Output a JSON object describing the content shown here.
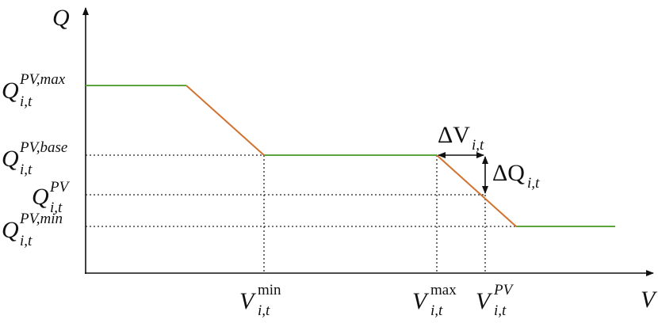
{
  "axes": {
    "y": "Q",
    "x": "V"
  },
  "y_labels": [
    {
      "base": "Q",
      "sup": "PV,max",
      "sub": "i,t"
    },
    {
      "base": "Q",
      "sup": "PV,base",
      "sub": "i,t"
    },
    {
      "base": "Q",
      "sup": "PV",
      "sub": "i,t"
    },
    {
      "base": "Q",
      "sup": "PV,min",
      "sub": "i,t"
    }
  ],
  "x_labels": [
    {
      "base": "V",
      "sup": "min",
      "sub": "i,t"
    },
    {
      "base": "V",
      "sup": "max",
      "sub": "i,t"
    },
    {
      "base": "V",
      "sup": "PV",
      "sub": "i,t"
    }
  ],
  "annotations": [
    {
      "base": "ΔV",
      "sub": "i,t"
    },
    {
      "base": "ΔQ",
      "sub": "i,t"
    }
  ]
}
